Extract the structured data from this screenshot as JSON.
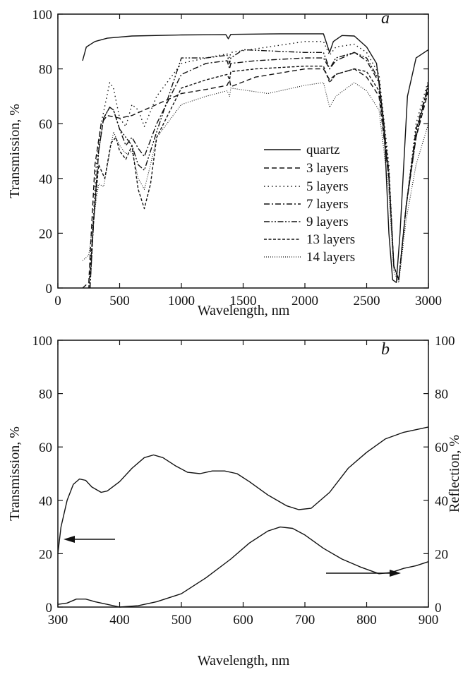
{
  "chart_data": [
    {
      "type": "line",
      "panel_label": "a",
      "xlabel": "Wavelength, nm",
      "ylabel": "Transmission, %",
      "xlim": [
        0,
        3000
      ],
      "ylim": [
        0,
        100
      ],
      "xticks": [
        "0",
        "500",
        "1000",
        "1500",
        "2000",
        "2500",
        "3000"
      ],
      "yticks": [
        "0",
        "20",
        "40",
        "60",
        "80",
        "100"
      ],
      "legend_position": "center-right",
      "series": [
        {
          "name": "quartz",
          "dash": "solid",
          "points": [
            [
              200,
              83
            ],
            [
              230,
              88
            ],
            [
              300,
              90
            ],
            [
              400,
              91.2
            ],
            [
              600,
              92
            ],
            [
              1000,
              92.4
            ],
            [
              1360,
              92.5
            ],
            [
              1380,
              91
            ],
            [
              1400,
              92.6
            ],
            [
              1800,
              92.8
            ],
            [
              2150,
              92.8
            ],
            [
              2200,
              86
            ],
            [
              2230,
              90
            ],
            [
              2300,
              92.2
            ],
            [
              2400,
              92
            ],
            [
              2500,
              88
            ],
            [
              2580,
              82
            ],
            [
              2640,
              60
            ],
            [
              2680,
              20
            ],
            [
              2710,
              3
            ],
            [
              2740,
              2
            ],
            [
              2770,
              20
            ],
            [
              2830,
              70
            ],
            [
              2900,
              84
            ],
            [
              3000,
              87
            ]
          ]
        },
        {
          "name": "3 layers",
          "dash": "dashed",
          "points": [
            [
              200,
              0
            ],
            [
              250,
              2
            ],
            [
              270,
              20
            ],
            [
              300,
              45
            ],
            [
              350,
              60
            ],
            [
              400,
              63
            ],
            [
              500,
              62
            ],
            [
              600,
              63
            ],
            [
              800,
              67
            ],
            [
              1000,
              71
            ],
            [
              1200,
              72.5
            ],
            [
              1370,
              74
            ],
            [
              1390,
              76
            ],
            [
              1400,
              73.5
            ],
            [
              1600,
              77
            ],
            [
              2000,
              80
            ],
            [
              2150,
              80
            ],
            [
              2200,
              76
            ],
            [
              2250,
              78
            ],
            [
              2400,
              80
            ],
            [
              2500,
              77
            ],
            [
              2600,
              70
            ],
            [
              2680,
              40
            ],
            [
              2720,
              8
            ],
            [
              2760,
              3
            ],
            [
              2820,
              30
            ],
            [
              2900,
              55
            ],
            [
              3000,
              72
            ]
          ]
        },
        {
          "name": "5 layers",
          "dash": "dotted",
          "points": [
            [
              260,
              0
            ],
            [
              280,
              20
            ],
            [
              310,
              45
            ],
            [
              350,
              60
            ],
            [
              420,
              75
            ],
            [
              450,
              73
            ],
            [
              500,
              62
            ],
            [
              550,
              59
            ],
            [
              600,
              67
            ],
            [
              650,
              65
            ],
            [
              700,
              59
            ],
            [
              800,
              70
            ],
            [
              1000,
              82
            ],
            [
              1200,
              84
            ],
            [
              1370,
              85.5
            ],
            [
              1390,
              84
            ],
            [
              1400,
              86
            ],
            [
              1700,
              88
            ],
            [
              2000,
              90
            ],
            [
              2150,
              90
            ],
            [
              2200,
              85
            ],
            [
              2250,
              88
            ],
            [
              2400,
              89
            ],
            [
              2500,
              86
            ],
            [
              2600,
              78
            ],
            [
              2680,
              45
            ],
            [
              2720,
              8
            ],
            [
              2760,
              3
            ],
            [
              2820,
              30
            ],
            [
              2900,
              60
            ],
            [
              3000,
              76
            ]
          ]
        },
        {
          "name": "7 layers",
          "dash": "dashdot",
          "points": [
            [
              260,
              0
            ],
            [
              290,
              25
            ],
            [
              330,
              50
            ],
            [
              370,
              62
            ],
            [
              420,
              66
            ],
            [
              450,
              65
            ],
            [
              500,
              58
            ],
            [
              550,
              52
            ],
            [
              600,
              55
            ],
            [
              650,
              51
            ],
            [
              700,
              48
            ],
            [
              800,
              60
            ],
            [
              1000,
              78
            ],
            [
              1200,
              82
            ],
            [
              1370,
              83
            ],
            [
              1390,
              80
            ],
            [
              1400,
              82
            ],
            [
              1600,
              83
            ],
            [
              2000,
              84
            ],
            [
              2150,
              84
            ],
            [
              2200,
              80
            ],
            [
              2250,
              83
            ],
            [
              2400,
              86
            ],
            [
              2500,
              83
            ],
            [
              2600,
              75
            ],
            [
              2680,
              42
            ],
            [
              2720,
              8
            ],
            [
              2760,
              3
            ],
            [
              2820,
              30
            ],
            [
              2900,
              58
            ],
            [
              3000,
              74
            ]
          ]
        },
        {
          "name": "9 layers",
          "dash": "dashdotdot",
          "points": [
            [
              260,
              0
            ],
            [
              290,
              25
            ],
            [
              330,
              50
            ],
            [
              370,
              62
            ],
            [
              420,
              66
            ],
            [
              450,
              65
            ],
            [
              500,
              58
            ],
            [
              550,
              55
            ],
            [
              600,
              52
            ],
            [
              650,
              45
            ],
            [
              700,
              43
            ],
            [
              800,
              57
            ],
            [
              1000,
              84
            ],
            [
              1200,
              84
            ],
            [
              1370,
              85
            ],
            [
              1390,
              82
            ],
            [
              1400,
              84
            ],
            [
              1500,
              87
            ],
            [
              2000,
              86
            ],
            [
              2150,
              86
            ],
            [
              2200,
              80
            ],
            [
              2250,
              84
            ],
            [
              2400,
              86
            ],
            [
              2500,
              84
            ],
            [
              2600,
              76
            ],
            [
              2680,
              42
            ],
            [
              2720,
              8
            ],
            [
              2760,
              3
            ],
            [
              2820,
              30
            ],
            [
              2900,
              57
            ],
            [
              3000,
              73
            ]
          ]
        },
        {
          "name": "13 layers",
          "dash": "shortdash",
          "points": [
            [
              250,
              0
            ],
            [
              290,
              25
            ],
            [
              330,
              45
            ],
            [
              380,
              40
            ],
            [
              430,
              53
            ],
            [
              470,
              55
            ],
            [
              500,
              50
            ],
            [
              550,
              47
            ],
            [
              600,
              52
            ],
            [
              650,
              36
            ],
            [
              700,
              29
            ],
            [
              750,
              38
            ],
            [
              800,
              55
            ],
            [
              1000,
              73
            ],
            [
              1200,
              76
            ],
            [
              1370,
              78
            ],
            [
              1390,
              76
            ],
            [
              1400,
              79
            ],
            [
              1600,
              80
            ],
            [
              2000,
              81
            ],
            [
              2150,
              81
            ],
            [
              2200,
              75
            ],
            [
              2250,
              78
            ],
            [
              2400,
              80
            ],
            [
              2500,
              79
            ],
            [
              2600,
              72
            ],
            [
              2680,
              40
            ],
            [
              2720,
              8
            ],
            [
              2760,
              3
            ],
            [
              2820,
              30
            ],
            [
              2900,
              55
            ],
            [
              3000,
              75
            ]
          ]
        },
        {
          "name": "14 layers",
          "dash": "finedot",
          "points": [
            [
              200,
              10
            ],
            [
              250,
              12
            ],
            [
              290,
              26
            ],
            [
              330,
              38
            ],
            [
              370,
              37
            ],
            [
              410,
              47
            ],
            [
              450,
              57
            ],
            [
              500,
              52
            ],
            [
              550,
              49
            ],
            [
              600,
              50
            ],
            [
              650,
              40
            ],
            [
              700,
              36
            ],
            [
              750,
              45
            ],
            [
              800,
              55
            ],
            [
              1000,
              67
            ],
            [
              1200,
              70
            ],
            [
              1370,
              72
            ],
            [
              1390,
              70
            ],
            [
              1400,
              73
            ],
            [
              1700,
              71
            ],
            [
              2000,
              74
            ],
            [
              2150,
              75
            ],
            [
              2200,
              66
            ],
            [
              2250,
              70
            ],
            [
              2400,
              75
            ],
            [
              2500,
              72
            ],
            [
              2600,
              65
            ],
            [
              2680,
              35
            ],
            [
              2720,
              6
            ],
            [
              2760,
              2
            ],
            [
              2820,
              25
            ],
            [
              2900,
              45
            ],
            [
              3000,
              60
            ]
          ]
        }
      ]
    },
    {
      "type": "line",
      "panel_label": "b",
      "xlabel": "Wavelength, nm",
      "ylabel": "Transmission, %",
      "ylabel_right": "Reflection, %",
      "xlim": [
        300,
        900
      ],
      "ylim": [
        0,
        100
      ],
      "xticks": [
        "300",
        "400",
        "500",
        "600",
        "700",
        "800",
        "900"
      ],
      "yticks": [
        "0",
        "20",
        "40",
        "60",
        "80",
        "100"
      ],
      "yticks_right": [
        "0",
        "20",
        "40",
        "60",
        "80",
        "100"
      ],
      "series": [
        {
          "axis": "left",
          "dash": "solid",
          "points": [
            [
              300,
              20
            ],
            [
              305,
              30
            ],
            [
              315,
              40
            ],
            [
              325,
              46
            ],
            [
              335,
              48
            ],
            [
              345,
              47.5
            ],
            [
              355,
              45
            ],
            [
              370,
              43
            ],
            [
              380,
              43.5
            ],
            [
              400,
              47
            ],
            [
              420,
              52
            ],
            [
              440,
              56
            ],
            [
              455,
              57
            ],
            [
              470,
              56
            ],
            [
              490,
              53
            ],
            [
              510,
              50.5
            ],
            [
              530,
              50
            ],
            [
              550,
              51
            ],
            [
              570,
              51
            ],
            [
              590,
              50
            ],
            [
              610,
              47
            ],
            [
              640,
              42
            ],
            [
              670,
              38
            ],
            [
              690,
              36.5
            ],
            [
              710,
              37
            ],
            [
              740,
              43
            ],
            [
              770,
              52
            ],
            [
              800,
              58
            ],
            [
              830,
              63
            ],
            [
              860,
              65.5
            ],
            [
              900,
              67.5
            ]
          ]
        },
        {
          "axis": "right",
          "dash": "solid",
          "points": [
            [
              300,
              1
            ],
            [
              315,
              1.5
            ],
            [
              330,
              3
            ],
            [
              345,
              3
            ],
            [
              360,
              2
            ],
            [
              380,
              1
            ],
            [
              400,
              0
            ],
            [
              430,
              0.5
            ],
            [
              460,
              2
            ],
            [
              500,
              5
            ],
            [
              540,
              11
            ],
            [
              580,
              18
            ],
            [
              610,
              24
            ],
            [
              640,
              28.5
            ],
            [
              660,
              30
            ],
            [
              680,
              29.5
            ],
            [
              700,
              27
            ],
            [
              730,
              22
            ],
            [
              760,
              18
            ],
            [
              790,
              15
            ],
            [
              820,
              12.5
            ],
            [
              840,
              13
            ],
            [
              860,
              14.5
            ],
            [
              880,
              15.5
            ],
            [
              900,
              17
            ]
          ]
        }
      ]
    }
  ]
}
